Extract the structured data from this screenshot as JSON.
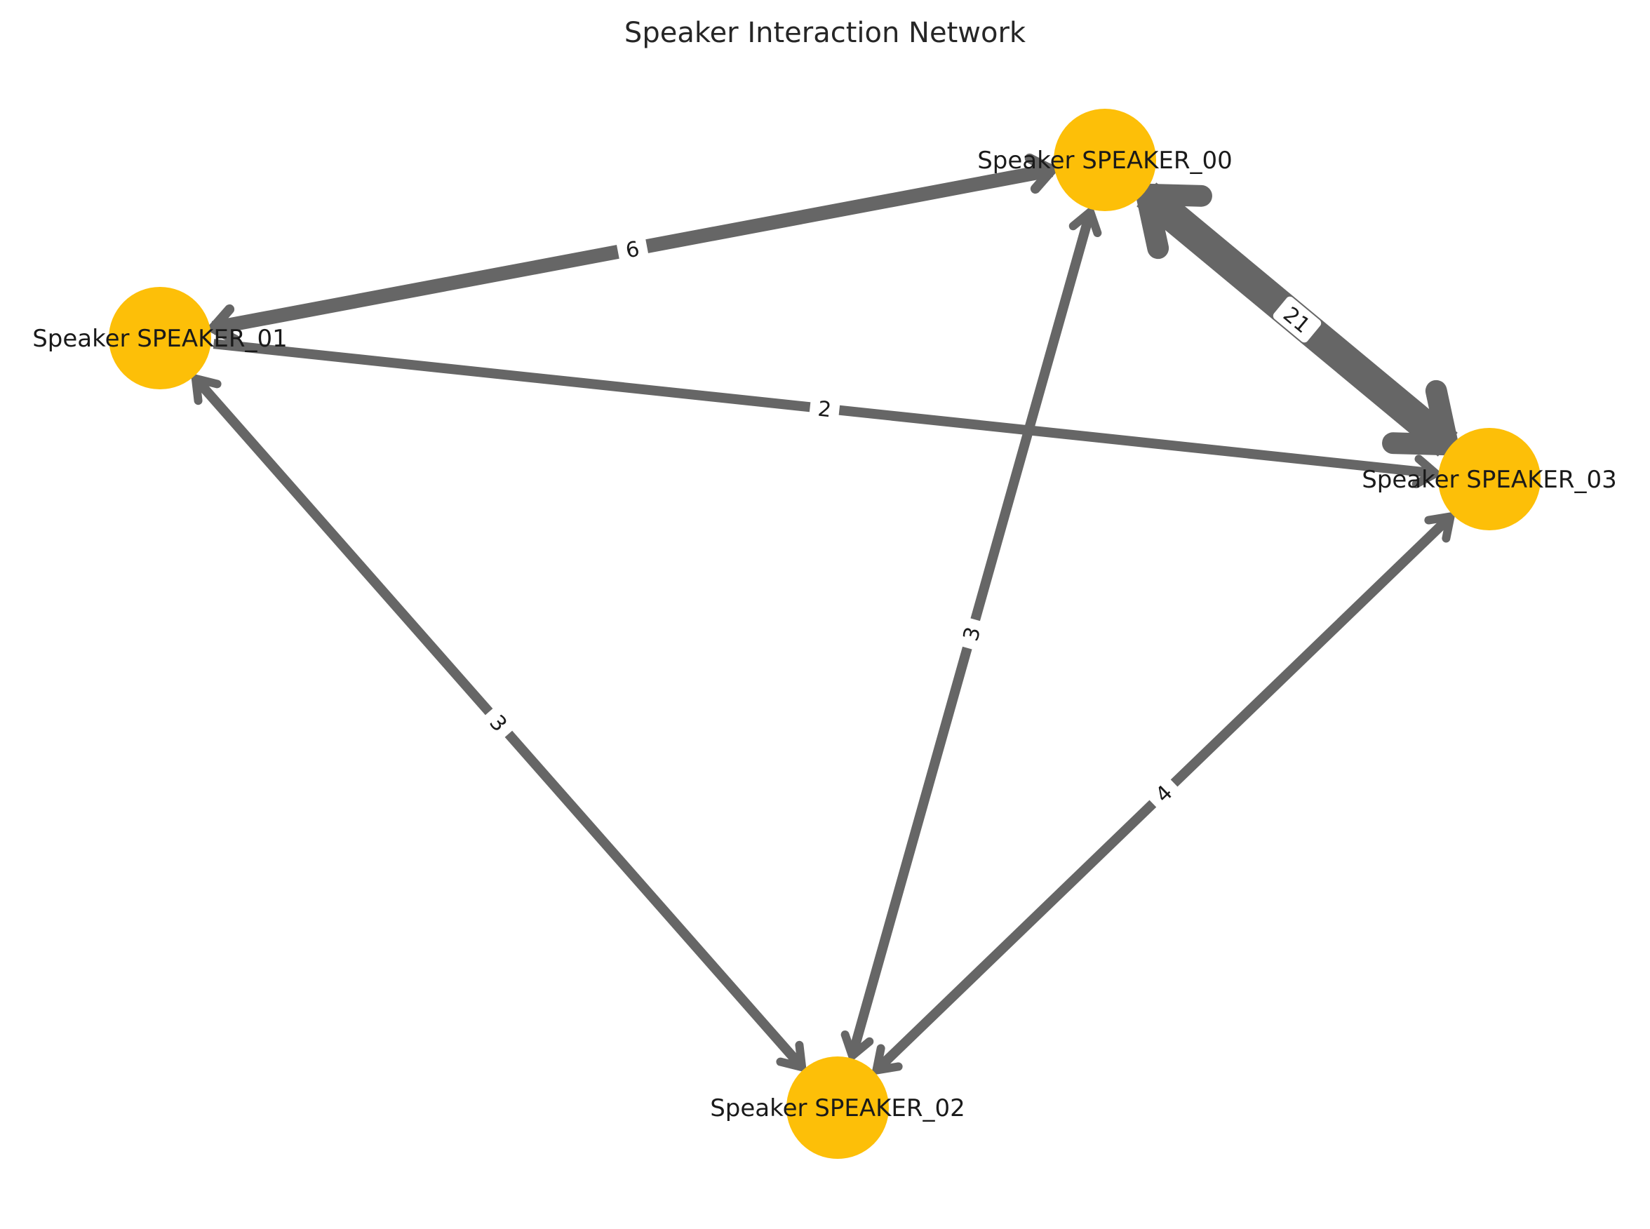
{
  "title": "Speaker Interaction Network",
  "colors": {
    "node": "#fdbf08",
    "edge": "#666666",
    "label_box": "#ffffff",
    "text": "#1a1a1a"
  },
  "nodes": [
    {
      "id": "SPEAKER_00",
      "label": "Speaker SPEAKER_00"
    },
    {
      "id": "SPEAKER_01",
      "label": "Speaker SPEAKER_01"
    },
    {
      "id": "SPEAKER_02",
      "label": "Speaker SPEAKER_02"
    },
    {
      "id": "SPEAKER_03",
      "label": "Speaker SPEAKER_03"
    }
  ],
  "edges": [
    {
      "source": "SPEAKER_00",
      "target": "SPEAKER_01",
      "weight": 6,
      "label": "6",
      "bidirectional": true
    },
    {
      "source": "SPEAKER_00",
      "target": "SPEAKER_03",
      "weight": 21,
      "label": "21",
      "bidirectional": true
    },
    {
      "source": "SPEAKER_00",
      "target": "SPEAKER_02",
      "weight": 3,
      "label": "3",
      "bidirectional": true
    },
    {
      "source": "SPEAKER_01",
      "target": "SPEAKER_03",
      "weight": 2,
      "label": "2",
      "bidirectional": false
    },
    {
      "source": "SPEAKER_01",
      "target": "SPEAKER_02",
      "weight": 3,
      "label": "3",
      "bidirectional": true
    },
    {
      "source": "SPEAKER_03",
      "target": "SPEAKER_02",
      "weight": 4,
      "label": "4",
      "bidirectional": true
    }
  ]
}
